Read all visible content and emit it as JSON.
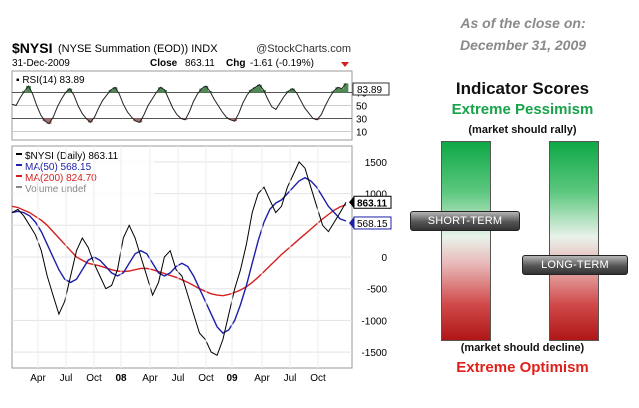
{
  "header": {
    "symbol": "$NYSI",
    "subtitle": "(NYSE Summation (EOD)) INDX",
    "source": "@StockCharts.com",
    "date": "31-Dec-2009",
    "close_label": "Close",
    "close_value": "863.11",
    "chg_label": "Chg",
    "chg_value": "-1.61 (-0.19%)"
  },
  "right_panel": {
    "asof_line1": "As of the close on:",
    "asof_line2": "December 31, 2009",
    "title": "Indicator Scores",
    "top_label": "Extreme Pessimism",
    "top_note": "(market should rally)",
    "bottom_note": "(market should decline)",
    "bottom_label": "Extreme Optimism",
    "short_term_label": "SHORT-TERM",
    "long_term_label": "LONG-TERM",
    "short_term_level": 0.4,
    "long_term_level": 0.62
  },
  "chart_data": [
    {
      "type": "area",
      "panel": "rsi",
      "legend": "RSI(14) 83.89",
      "current_value_label": "83.89",
      "yticks": [
        10,
        30,
        50,
        70
      ],
      "ytick_labels": [
        "10",
        "30",
        "50",
        "70"
      ],
      "ylim": [
        0,
        100
      ],
      "values": [
        52,
        50,
        62,
        72,
        80,
        68,
        50,
        35,
        26,
        22,
        32,
        48,
        60,
        70,
        76,
        66,
        50,
        38,
        30,
        24,
        32,
        46,
        58,
        66,
        74,
        78,
        68,
        52,
        40,
        32,
        26,
        24,
        36,
        50,
        60,
        70,
        78,
        74,
        60,
        46,
        36,
        30,
        28,
        40,
        56,
        68,
        76,
        80,
        72,
        60,
        50,
        40,
        32,
        28,
        26,
        38,
        54,
        66,
        74,
        78,
        82,
        74,
        60,
        48,
        44,
        54,
        64,
        72,
        76,
        70,
        58,
        46,
        38,
        30,
        28,
        36,
        50,
        62,
        72,
        78,
        76,
        84
      ]
    },
    {
      "type": "line",
      "panel": "main",
      "x_labels": [
        "Apr",
        "Jul",
        "Oct",
        "08",
        "Apr",
        "Jul",
        "Oct",
        "09",
        "Apr",
        "Jul",
        "Oct"
      ],
      "yticks": [
        -1500,
        -1000,
        -500,
        0,
        500,
        1000,
        1500
      ],
      "ytick_labels": [
        "-1500",
        "-1000",
        "-500",
        "0",
        "500",
        "1000",
        "1500"
      ],
      "ylim": [
        -1750,
        1750
      ],
      "last_value_labels": [
        "863.11",
        "568.15"
      ],
      "series": [
        {
          "name": "$NYSI (Daily) 863.11",
          "color": "#000000",
          "values": [
            700,
            750,
            650,
            500,
            350,
            100,
            -300,
            -600,
            -900,
            -700,
            -300,
            100,
            300,
            150,
            -100,
            -300,
            -500,
            -450,
            -200,
            300,
            500,
            300,
            0,
            -300,
            -600,
            -400,
            0,
            100,
            -200,
            -300,
            -600,
            -900,
            -1200,
            -1300,
            -1500,
            -1550,
            -1300,
            -900,
            -500,
            -200,
            200,
            700,
            1000,
            1100,
            900,
            700,
            800,
            1100,
            1300,
            1500,
            1400,
            1100,
            800,
            500,
            400,
            550,
            700,
            863
          ]
        },
        {
          "name": "MA(50) 568.15",
          "color": "#1c1fa8",
          "values": [
            700,
            720,
            700,
            650,
            550,
            400,
            200,
            0,
            -200,
            -350,
            -400,
            -350,
            -200,
            -50,
            0,
            -50,
            -150,
            -250,
            -300,
            -250,
            -100,
            50,
            100,
            50,
            -100,
            -250,
            -300,
            -250,
            -150,
            -100,
            -150,
            -300,
            -500,
            -700,
            -900,
            -1100,
            -1200,
            -1150,
            -1000,
            -750,
            -450,
            -100,
            250,
            550,
            750,
            850,
            900,
            1000,
            1100,
            1200,
            1250,
            1200,
            1100,
            950,
            800,
            700,
            600,
            568
          ]
        },
        {
          "name": "MA(200) 824.70",
          "color": "#d62020",
          "values": [
            800,
            780,
            740,
            700,
            640,
            580,
            500,
            400,
            300,
            200,
            100,
            0,
            -50,
            -100,
            -120,
            -140,
            -170,
            -200,
            -220,
            -230,
            -220,
            -200,
            -180,
            -180,
            -200,
            -230,
            -260,
            -290,
            -320,
            -360,
            -400,
            -450,
            -500,
            -540,
            -580,
            -600,
            -610,
            -590,
            -560,
            -520,
            -470,
            -400,
            -320,
            -230,
            -140,
            -50,
            40,
            120,
            200,
            280,
            360,
            440,
            520,
            600,
            670,
            740,
            790,
            825
          ]
        },
        {
          "name": "Volume undef",
          "color": "#888888",
          "values": []
        }
      ]
    }
  ]
}
